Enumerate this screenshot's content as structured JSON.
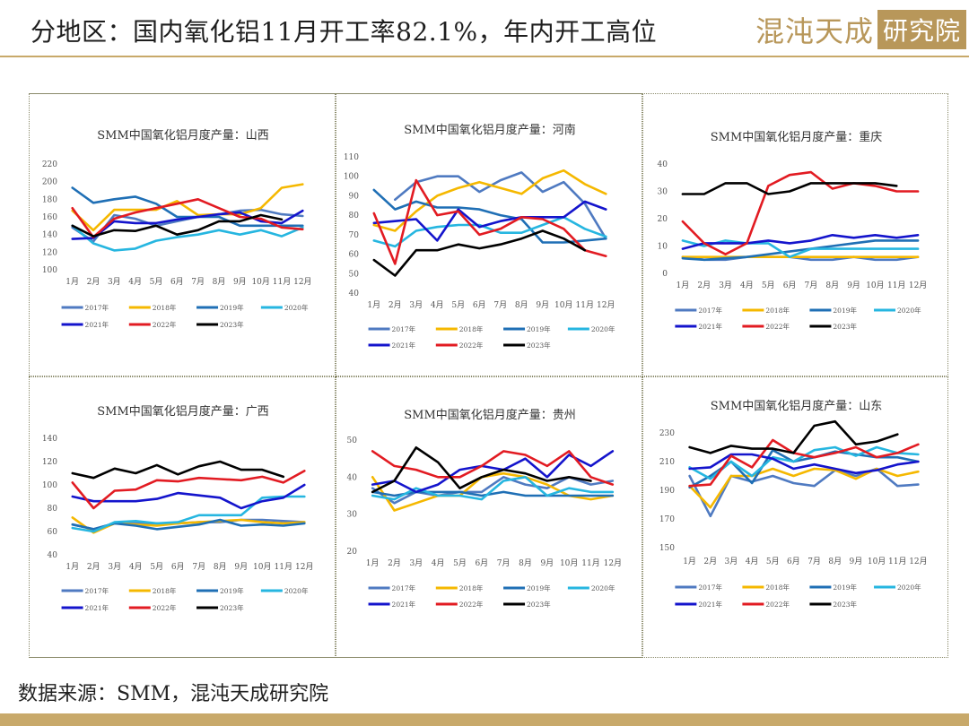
{
  "header": {
    "title": "分地区：国内氧化铝11月开工率82.1%，年内开工高位",
    "logo_text": "混沌天成",
    "logo_box": "研究院"
  },
  "source": "数据来源：SMM，混沌天成研究院",
  "colors": {
    "gold": "#c8a96a",
    "series": {
      "2017年": "#4f7ac1",
      "2018年": "#f5b800",
      "2019年": "#1f6fb5",
      "2020年": "#26b6e0",
      "2021年": "#1414cc",
      "2022年": "#e21b22",
      "2023年": "#000000"
    }
  },
  "chart_data": [
    {
      "type": "line",
      "title": "SMM中国氧化铝月度产量：山西",
      "categories": [
        "1月",
        "2月",
        "3月",
        "4月",
        "5月",
        "6月",
        "7月",
        "8月",
        "9月",
        "10月",
        "11月",
        "12月"
      ],
      "ylim": [
        100,
        220
      ],
      "yticks": [
        100,
        120,
        140,
        160,
        180,
        200,
        220
      ],
      "series": [
        {
          "name": "2017年",
          "values": [
            148,
            132,
            162,
            158,
            150,
            155,
            160,
            163,
            167,
            168,
            163,
            161
          ]
        },
        {
          "name": "2018年",
          "values": [
            167,
            145,
            168,
            168,
            168,
            178,
            162,
            163,
            163,
            170,
            193,
            197
          ]
        },
        {
          "name": "2019年",
          "values": [
            193,
            176,
            180,
            183,
            175,
            160,
            160,
            160,
            150,
            150,
            150,
            150
          ]
        },
        {
          "name": "2020年",
          "values": [
            150,
            130,
            122,
            124,
            133,
            137,
            140,
            145,
            140,
            145,
            138,
            148
          ]
        },
        {
          "name": "2021年",
          "values": [
            135,
            136,
            155,
            153,
            153,
            157,
            160,
            163,
            165,
            155,
            153,
            167
          ]
        },
        {
          "name": "2022年",
          "values": [
            170,
            137,
            158,
            165,
            170,
            175,
            180,
            170,
            160,
            158,
            148,
            146
          ]
        },
        {
          "name": "2023年",
          "values": [
            150,
            138,
            145,
            144,
            150,
            140,
            145,
            155,
            155,
            162,
            157,
            null
          ]
        }
      ]
    },
    {
      "type": "line",
      "title": "SMM中国氧化铝月度产量：河南",
      "categories": [
        "1月",
        "2月",
        "3月",
        "4月",
        "5月",
        "6月",
        "7月",
        "8月",
        "9月",
        "10月",
        "11月",
        "12月"
      ],
      "ylim": [
        40,
        110
      ],
      "yticks": [
        40,
        50,
        60,
        70,
        80,
        90,
        100,
        110
      ],
      "series": [
        {
          "name": "2017年",
          "values": [
            null,
            88,
            97,
            100,
            100,
            92,
            98,
            102,
            92,
            97,
            86,
            68
          ]
        },
        {
          "name": "2018年",
          "values": [
            75,
            72,
            82,
            90,
            94,
            97,
            94,
            91,
            99,
            103,
            96,
            91
          ]
        },
        {
          "name": "2019年",
          "values": [
            93,
            83,
            87,
            84,
            84,
            83,
            80,
            78,
            66,
            66,
            67,
            68
          ]
        },
        {
          "name": "2020年",
          "values": [
            67,
            64,
            72,
            74,
            75,
            75,
            71,
            71,
            75,
            79,
            73,
            69
          ]
        },
        {
          "name": "2021年",
          "values": [
            76,
            77,
            78,
            67,
            83,
            74,
            77,
            79,
            79,
            79,
            87,
            83
          ]
        },
        {
          "name": "2022年",
          "values": [
            81,
            55,
            98,
            80,
            82,
            70,
            73,
            79,
            78,
            73,
            62,
            59
          ]
        },
        {
          "name": "2023年",
          "values": [
            57,
            49,
            62,
            62,
            65,
            63,
            65,
            68,
            72,
            68,
            62,
            null
          ]
        }
      ]
    },
    {
      "type": "line",
      "title": "SMM中国氧化铝月度产量：重庆",
      "categories": [
        "1月",
        "2月",
        "3月",
        "4月",
        "5月",
        "6月",
        "7月",
        "8月",
        "9月",
        "10月",
        "11月",
        "12月"
      ],
      "ylim": [
        0,
        40
      ],
      "yticks": [
        0,
        10,
        20,
        30,
        40
      ],
      "series": [
        {
          "name": "2017年",
          "values": [
            6,
            5,
            5,
            6,
            6,
            6,
            5,
            5,
            6,
            5,
            5,
            6
          ]
        },
        {
          "name": "2018年",
          "values": [
            6,
            6,
            6,
            6,
            6,
            6,
            6,
            6,
            6,
            6,
            6,
            6
          ]
        },
        {
          "name": "2019年",
          "values": [
            5.5,
            5,
            5.5,
            6,
            7,
            8,
            9,
            10,
            11,
            12,
            12,
            12
          ]
        },
        {
          "name": "2020年",
          "values": [
            12,
            10,
            12,
            11,
            11,
            6,
            9,
            9,
            9,
            9,
            9,
            9
          ]
        },
        {
          "name": "2021年",
          "values": [
            9,
            11,
            11,
            11,
            12,
            11,
            12,
            14,
            13,
            14,
            13,
            14
          ]
        },
        {
          "name": "2022年",
          "values": [
            19,
            11,
            7,
            11,
            32,
            36,
            37,
            31,
            33,
            32,
            30,
            30
          ]
        },
        {
          "name": "2023年",
          "values": [
            29,
            29,
            33,
            33,
            29,
            30,
            33,
            33,
            33,
            33,
            32,
            null
          ]
        }
      ]
    },
    {
      "type": "line",
      "title": "SMM中国氧化铝月度产量：广西",
      "categories": [
        "1月",
        "2月",
        "3月",
        "4月",
        "5月",
        "6月",
        "7月",
        "8月",
        "9月",
        "10月",
        "11月",
        "12月"
      ],
      "ylim": [
        40,
        140
      ],
      "yticks": [
        40,
        60,
        80,
        100,
        120,
        140
      ],
      "series": [
        {
          "name": "2017年",
          "values": [
            66,
            62,
            67,
            67,
            67,
            67,
            68,
            68,
            70,
            70,
            69,
            68
          ]
        },
        {
          "name": "2018年",
          "values": [
            72,
            59,
            67,
            66,
            65,
            67,
            68,
            69,
            70,
            68,
            67,
            68
          ]
        },
        {
          "name": "2019年",
          "values": [
            66,
            62,
            67,
            65,
            62,
            64,
            66,
            70,
            65,
            66,
            65,
            67
          ]
        },
        {
          "name": "2020年",
          "values": [
            63,
            60,
            68,
            69,
            67,
            68,
            74,
            74,
            74,
            89,
            90,
            90
          ]
        },
        {
          "name": "2021年",
          "values": [
            90,
            86,
            86,
            86,
            88,
            93,
            91,
            89,
            80,
            86,
            89,
            100
          ]
        },
        {
          "name": "2022年",
          "values": [
            102,
            80,
            95,
            96,
            104,
            103,
            106,
            105,
            104,
            107,
            102,
            112
          ]
        },
        {
          "name": "2023年",
          "values": [
            110,
            106,
            114,
            110,
            117,
            109,
            116,
            120,
            113,
            113,
            107,
            null
          ]
        }
      ]
    },
    {
      "type": "line",
      "title": "SMM中国氧化铝月度产量：贵州",
      "categories": [
        "1月",
        "2月",
        "3月",
        "4月",
        "5月",
        "6月",
        "7月",
        "8月",
        "9月",
        "10月",
        "11月",
        "12月"
      ],
      "ylim": [
        20,
        50
      ],
      "yticks": [
        20,
        30,
        40,
        50
      ],
      "series": [
        {
          "name": "2017年",
          "values": [
            37,
            33,
            36,
            35,
            36,
            36,
            40,
            38,
            37,
            40,
            38,
            39
          ]
        },
        {
          "name": "2018年",
          "values": [
            40,
            31,
            33,
            35,
            35,
            40,
            41,
            40,
            38,
            35,
            34,
            35
          ]
        },
        {
          "name": "2019年",
          "values": [
            36,
            35,
            36,
            36,
            36,
            35,
            36,
            35,
            35,
            35,
            35,
            35
          ]
        },
        {
          "name": "2020年",
          "values": [
            35,
            34,
            37,
            35,
            35,
            34,
            39,
            40,
            35,
            37,
            36,
            36
          ]
        },
        {
          "name": "2021年",
          "values": [
            38,
            39,
            36,
            38,
            42,
            43,
            42,
            45,
            40,
            46,
            43,
            47
          ]
        },
        {
          "name": "2022年",
          "values": [
            47,
            43,
            42,
            40,
            40,
            43,
            47,
            46,
            43,
            47,
            40,
            38
          ]
        },
        {
          "name": "2023年",
          "values": [
            36,
            39,
            48,
            44,
            37,
            40,
            42,
            41,
            39,
            40,
            39,
            null
          ]
        }
      ]
    },
    {
      "type": "line",
      "title": "SMM中国氧化铝月度产量：山东",
      "categories": [
        "1月",
        "2月",
        "3月",
        "4月",
        "5月",
        "6月",
        "7月",
        "8月",
        "9月",
        "10月",
        "11月",
        "12月"
      ],
      "ylim": [
        150,
        230
      ],
      "yticks": [
        150,
        170,
        190,
        210,
        230
      ],
      "series": [
        {
          "name": "2017年",
          "values": [
            200,
            172,
            200,
            196,
            200,
            195,
            193,
            204,
            200,
            205,
            193,
            194
          ]
        },
        {
          "name": "2018年",
          "values": [
            193,
            178,
            200,
            200,
            205,
            200,
            205,
            204,
            198,
            205,
            200,
            203
          ]
        },
        {
          "name": "2019年",
          "values": [
            192,
            200,
            210,
            195,
            218,
            210,
            213,
            217,
            215,
            213,
            213,
            210
          ]
        },
        {
          "name": "2020年",
          "values": [
            206,
            198,
            210,
            200,
            213,
            210,
            218,
            220,
            214,
            220,
            216,
            215
          ]
        },
        {
          "name": "2021年",
          "values": [
            205,
            206,
            215,
            215,
            212,
            205,
            208,
            205,
            202,
            204,
            208,
            210
          ]
        },
        {
          "name": "2022年",
          "values": [
            193,
            194,
            214,
            206,
            225,
            216,
            213,
            216,
            220,
            213,
            216,
            222
          ]
        },
        {
          "name": "2023年",
          "values": [
            220,
            216,
            221,
            219,
            219,
            216,
            235,
            238,
            222,
            224,
            229,
            null
          ]
        }
      ]
    }
  ]
}
